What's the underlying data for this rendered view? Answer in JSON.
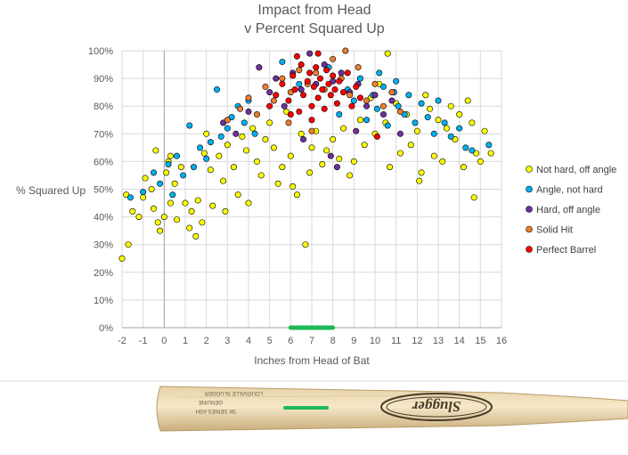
{
  "chart_data": {
    "type": "scatter",
    "title": [
      "Impact from Head",
      "v Percent Squared Up"
    ],
    "xlabel": "Inches from Head of Bat",
    "ylabel": "% Squared Up",
    "xlim": [
      -2,
      16
    ],
    "ylim": [
      0,
      100
    ],
    "x_ticks": [
      "-2",
      "-1",
      "0",
      "1",
      "2",
      "3",
      "4",
      "5",
      "6",
      "7",
      "8",
      "9",
      "10",
      "11",
      "12",
      "13",
      "14",
      "15",
      "16"
    ],
    "y_ticks": [
      "0%",
      "10%",
      "20%",
      "30%",
      "40%",
      "50%",
      "60%",
      "70%",
      "80%",
      "90%",
      "100%"
    ],
    "grid": true,
    "legend_position": "right",
    "sweet_spot_range": [
      6,
      8
    ],
    "series": [
      {
        "name": "Not hard, off angle",
        "color": "#ffff00",
        "points": [
          [
            -2.0,
            25
          ],
          [
            -1.7,
            30
          ],
          [
            -1.8,
            48
          ],
          [
            -1.5,
            42
          ],
          [
            -1.2,
            40
          ],
          [
            -1.0,
            47
          ],
          [
            -0.9,
            54
          ],
          [
            -0.6,
            50
          ],
          [
            -0.5,
            43
          ],
          [
            -0.4,
            64
          ],
          [
            -0.3,
            38
          ],
          [
            -0.2,
            35
          ],
          [
            0.0,
            40
          ],
          [
            0.1,
            56
          ],
          [
            0.2,
            60
          ],
          [
            0.3,
            45
          ],
          [
            0.3,
            62
          ],
          [
            0.5,
            52
          ],
          [
            0.6,
            39
          ],
          [
            0.8,
            58
          ],
          [
            1.0,
            45
          ],
          [
            1.2,
            36
          ],
          [
            1.3,
            42
          ],
          [
            1.5,
            33
          ],
          [
            1.6,
            46
          ],
          [
            1.8,
            38
          ],
          [
            1.9,
            63
          ],
          [
            2.0,
            70
          ],
          [
            2.2,
            57
          ],
          [
            2.3,
            44
          ],
          [
            2.6,
            62
          ],
          [
            2.8,
            53
          ],
          [
            2.9,
            42
          ],
          [
            3.0,
            66
          ],
          [
            3.3,
            58
          ],
          [
            3.5,
            48
          ],
          [
            3.7,
            69
          ],
          [
            3.9,
            64
          ],
          [
            4.0,
            45
          ],
          [
            4.2,
            72
          ],
          [
            4.4,
            60
          ],
          [
            4.6,
            55
          ],
          [
            4.8,
            68
          ],
          [
            5.0,
            74
          ],
          [
            5.2,
            65
          ],
          [
            5.4,
            52
          ],
          [
            5.6,
            58
          ],
          [
            5.8,
            78
          ],
          [
            6.0,
            62
          ],
          [
            6.1,
            51
          ],
          [
            6.3,
            48
          ],
          [
            6.5,
            70
          ],
          [
            6.7,
            30
          ],
          [
            6.9,
            56
          ],
          [
            7.0,
            65
          ],
          [
            7.2,
            71
          ],
          [
            7.5,
            59
          ],
          [
            7.7,
            64
          ],
          [
            8.0,
            68
          ],
          [
            8.3,
            61
          ],
          [
            8.5,
            72
          ],
          [
            8.8,
            55
          ],
          [
            9.0,
            60
          ],
          [
            9.3,
            75
          ],
          [
            9.5,
            66
          ],
          [
            9.8,
            83
          ],
          [
            10.0,
            70
          ],
          [
            10.2,
            88
          ],
          [
            10.5,
            74
          ],
          [
            10.7,
            58
          ],
          [
            11.0,
            81
          ],
          [
            11.2,
            63
          ],
          [
            11.5,
            77
          ],
          [
            11.7,
            66
          ],
          [
            12.0,
            71
          ],
          [
            12.2,
            56
          ],
          [
            12.4,
            84
          ],
          [
            12.6,
            79
          ],
          [
            12.8,
            62
          ],
          [
            13.0,
            75
          ],
          [
            13.2,
            60
          ],
          [
            13.4,
            72
          ],
          [
            13.6,
            80
          ],
          [
            13.8,
            68
          ],
          [
            14.0,
            77
          ],
          [
            14.2,
            58
          ],
          [
            14.4,
            82
          ],
          [
            14.6,
            74
          ],
          [
            14.8,
            63
          ],
          [
            15.0,
            60
          ],
          [
            15.2,
            71
          ],
          [
            15.5,
            63
          ],
          [
            14.7,
            47
          ],
          [
            10.6,
            99
          ],
          [
            12.1,
            53
          ]
        ]
      },
      {
        "name": "Angle, not hard",
        "color": "#00b0f0",
        "points": [
          [
            -1.6,
            47
          ],
          [
            -1.0,
            49
          ],
          [
            -0.5,
            56
          ],
          [
            -0.2,
            52
          ],
          [
            0.2,
            59
          ],
          [
            0.4,
            48
          ],
          [
            0.6,
            62
          ],
          [
            0.9,
            55
          ],
          [
            1.2,
            73
          ],
          [
            1.4,
            58
          ],
          [
            1.7,
            65
          ],
          [
            2.0,
            61
          ],
          [
            2.2,
            67
          ],
          [
            2.5,
            86
          ],
          [
            2.7,
            69
          ],
          [
            3.0,
            72
          ],
          [
            3.2,
            76
          ],
          [
            3.5,
            80
          ],
          [
            3.8,
            74
          ],
          [
            4.0,
            82
          ],
          [
            4.3,
            70
          ],
          [
            5.6,
            96
          ],
          [
            6.4,
            88
          ],
          [
            7.8,
            94
          ],
          [
            8.3,
            77
          ],
          [
            8.7,
            86
          ],
          [
            9.0,
            82
          ],
          [
            9.3,
            90
          ],
          [
            9.6,
            75
          ],
          [
            9.9,
            84
          ],
          [
            10.1,
            79
          ],
          [
            10.4,
            87
          ],
          [
            10.6,
            73
          ],
          [
            10.9,
            85
          ],
          [
            11.1,
            80
          ],
          [
            11.4,
            77
          ],
          [
            11.6,
            84
          ],
          [
            11.9,
            74
          ],
          [
            12.2,
            81
          ],
          [
            12.5,
            76
          ],
          [
            12.8,
            70
          ],
          [
            13.0,
            82
          ],
          [
            13.3,
            74
          ],
          [
            13.6,
            69
          ],
          [
            14.0,
            72
          ],
          [
            14.3,
            65
          ],
          [
            14.6,
            64
          ],
          [
            15.4,
            66
          ],
          [
            11.0,
            89
          ],
          [
            10.2,
            92
          ]
        ]
      },
      {
        "name": "Hard, off angle",
        "color": "#7030a0",
        "points": [
          [
            2.8,
            74
          ],
          [
            3.4,
            70
          ],
          [
            4.0,
            78
          ],
          [
            4.5,
            94
          ],
          [
            5.0,
            85
          ],
          [
            5.3,
            90
          ],
          [
            5.7,
            80
          ],
          [
            6.1,
            92
          ],
          [
            6.5,
            86
          ],
          [
            6.9,
            99
          ],
          [
            7.2,
            88
          ],
          [
            7.6,
            95
          ],
          [
            8.0,
            89
          ],
          [
            8.4,
            92
          ],
          [
            8.8,
            85
          ],
          [
            9.2,
            88
          ],
          [
            9.6,
            80
          ],
          [
            10.0,
            84
          ],
          [
            10.4,
            77
          ],
          [
            10.8,
            82
          ],
          [
            11.2,
            70
          ],
          [
            7.9,
            62
          ],
          [
            8.2,
            58
          ],
          [
            6.6,
            68
          ],
          [
            9.1,
            71
          ]
        ]
      },
      {
        "name": "Solid Hit",
        "color": "#ed7d31",
        "points": [
          [
            3.0,
            75
          ],
          [
            3.6,
            79
          ],
          [
            4.0,
            83
          ],
          [
            4.4,
            77
          ],
          [
            4.8,
            87
          ],
          [
            5.2,
            82
          ],
          [
            5.6,
            90
          ],
          [
            6.0,
            85
          ],
          [
            6.4,
            93
          ],
          [
            6.8,
            88
          ],
          [
            7.2,
            92
          ],
          [
            7.6,
            86
          ],
          [
            8.0,
            97
          ],
          [
            8.4,
            90
          ],
          [
            8.8,
            84
          ],
          [
            9.2,
            94
          ],
          [
            9.6,
            82
          ],
          [
            10.0,
            88
          ],
          [
            10.4,
            80
          ],
          [
            10.8,
            85
          ],
          [
            11.2,
            78
          ],
          [
            8.6,
            100
          ],
          [
            5.9,
            74
          ],
          [
            7.0,
            71
          ]
        ]
      },
      {
        "name": "Perfect Barrel",
        "color": "#ff0000",
        "points": [
          [
            5.0,
            80
          ],
          [
            5.3,
            84
          ],
          [
            5.6,
            88
          ],
          [
            5.9,
            82
          ],
          [
            6.1,
            91
          ],
          [
            6.2,
            86
          ],
          [
            6.4,
            78
          ],
          [
            6.5,
            95
          ],
          [
            6.6,
            84
          ],
          [
            6.8,
            89
          ],
          [
            6.9,
            92
          ],
          [
            7.0,
            80
          ],
          [
            7.1,
            87
          ],
          [
            7.2,
            94
          ],
          [
            7.3,
            83
          ],
          [
            7.4,
            90
          ],
          [
            7.5,
            86
          ],
          [
            7.6,
            79
          ],
          [
            7.7,
            93
          ],
          [
            7.8,
            88
          ],
          [
            7.9,
            84
          ],
          [
            8.0,
            91
          ],
          [
            8.1,
            86
          ],
          [
            8.2,
            81
          ],
          [
            8.3,
            89
          ],
          [
            8.5,
            85
          ],
          [
            8.7,
            92
          ],
          [
            8.9,
            80
          ],
          [
            9.1,
            87
          ],
          [
            9.3,
            83
          ],
          [
            6.3,
            98
          ],
          [
            7.3,
            99
          ],
          [
            6.0,
            77
          ],
          [
            7.0,
            75
          ],
          [
            10.1,
            69
          ]
        ]
      }
    ]
  }
}
